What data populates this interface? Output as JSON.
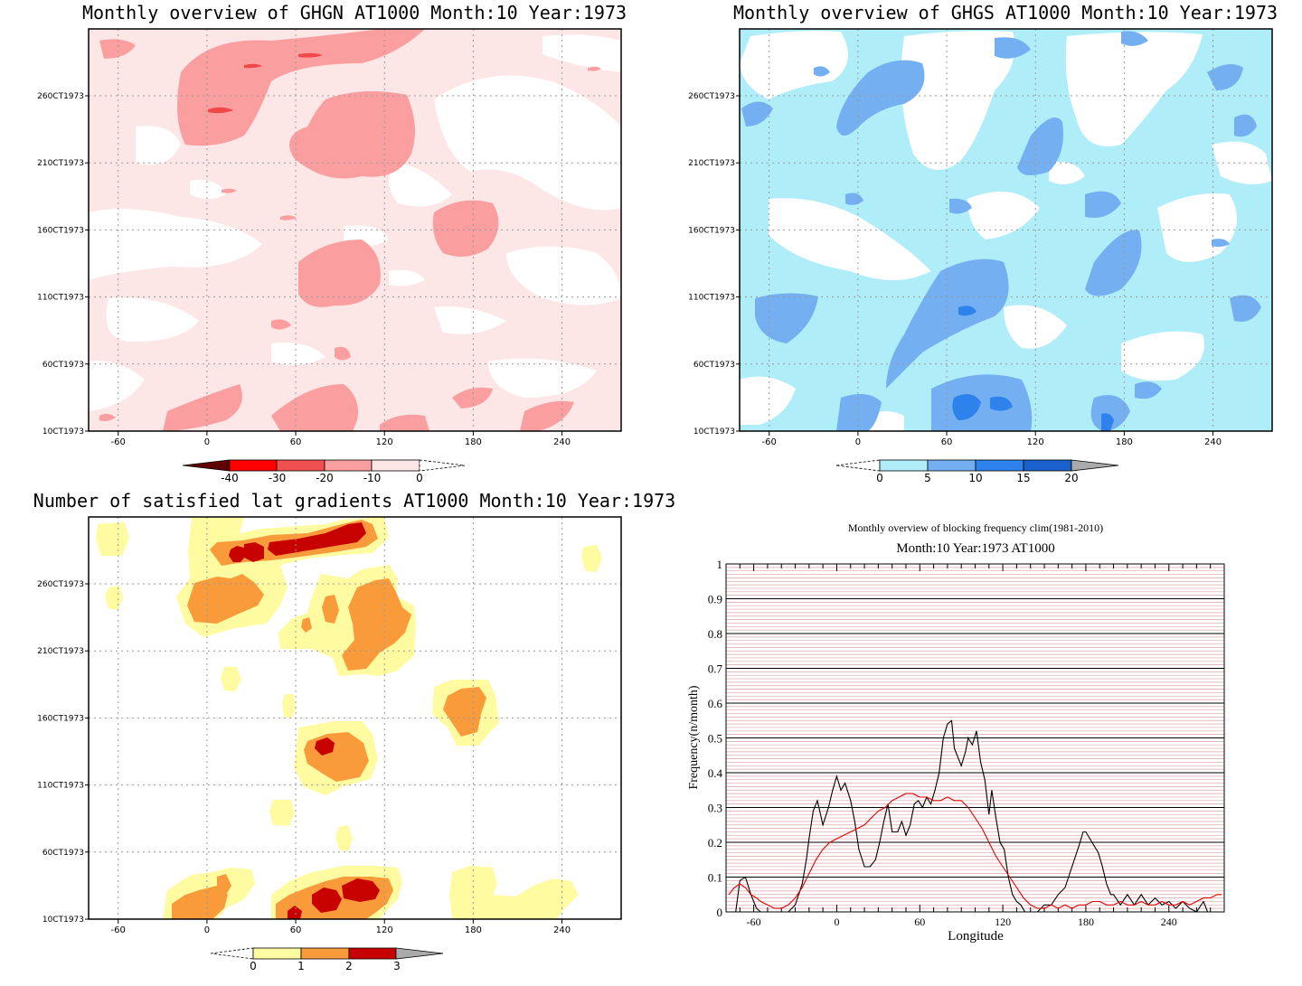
{
  "chart_data": [
    {
      "type": "heatmap",
      "title": "Monthly overview of GHGN AT1000 Month:10 Year:1973",
      "x_ticks": [
        -60,
        0,
        60,
        120,
        180,
        240
      ],
      "y_ticks": [
        "10CT1973",
        "60CT1973",
        "110CT1973",
        "160CT1973",
        "210CT1973",
        "260CT1973"
      ],
      "xlim": [
        -80,
        280
      ],
      "colorbar": {
        "ticks": [
          "-40",
          "-30",
          "-20",
          "-10",
          "0"
        ],
        "colors": [
          "#600000",
          "#ff0000",
          "#f05050",
          "#fa9ea0",
          "#fde6e6"
        ]
      },
      "grid": true
    },
    {
      "type": "heatmap",
      "title": "Monthly overview of GHGS AT1000 Month:10 Year:1973",
      "x_ticks": [
        -60,
        0,
        60,
        120,
        180,
        240
      ],
      "y_ticks": [
        "10CT1973",
        "60CT1973",
        "110CT1973",
        "160CT1973",
        "210CT1973",
        "260CT1973"
      ],
      "xlim": [
        -80,
        280
      ],
      "colorbar": {
        "ticks": [
          "0",
          "5",
          "10",
          "15",
          "20"
        ],
        "colors": [
          "#afedf8",
          "#74aff2",
          "#2d82ec",
          "#1a60cc",
          "#aaaaaa"
        ]
      },
      "grid": true
    },
    {
      "type": "heatmap",
      "title": "Number of satisfied lat gradients AT1000 Month:10 Year:1973",
      "x_ticks": [
        -60,
        0,
        60,
        120,
        180,
        240
      ],
      "y_ticks": [
        "10CT1973",
        "60CT1973",
        "110CT1973",
        "160CT1973",
        "210CT1973",
        "260CT1973"
      ],
      "xlim": [
        -80,
        280
      ],
      "colorbar": {
        "ticks": [
          "0",
          "1",
          "2",
          "3"
        ],
        "colors": [
          "#fffba0",
          "#f99b3b",
          "#c70000",
          "#aaaaaa"
        ]
      },
      "grid": true
    },
    {
      "type": "line",
      "title": "Monthly overview of blocking frequency clim(1981-2010)",
      "subtitle": "Month:10 Year:1973  AT1000",
      "xlabel": "Longitude",
      "ylabel": "Frequency(n/month)",
      "xlim": [
        -80,
        280
      ],
      "ylim": [
        0,
        1
      ],
      "x_ticks": [
        -60,
        0,
        60,
        120,
        180,
        240
      ],
      "y_ticks": [
        "0",
        "0.1",
        "0.2",
        "0.3",
        "0.4",
        "0.5",
        "0.6",
        "0.7",
        "0.8",
        "0.9",
        "1"
      ],
      "grid": true,
      "series": [
        {
          "color": "#000000",
          "x": [
            -73,
            -70,
            -66,
            -62,
            -58,
            -55,
            -50,
            -45,
            -40,
            -35,
            -30,
            -25,
            -22,
            -20,
            -17,
            -14,
            -10,
            -6,
            -3,
            0,
            3,
            6,
            10,
            13,
            16,
            20,
            24,
            28,
            31,
            34,
            37,
            40,
            44,
            47,
            50,
            53,
            56,
            59,
            62,
            65,
            68,
            71,
            74,
            77,
            80,
            83,
            85,
            88,
            90,
            93,
            95,
            98,
            101,
            104,
            107,
            110,
            112,
            115,
            118,
            121,
            124,
            127,
            130,
            133,
            136,
            140,
            145,
            150,
            155,
            160,
            165,
            170,
            175,
            178,
            180,
            183,
            186,
            189,
            192,
            195,
            198,
            200,
            205,
            210,
            215,
            220,
            225,
            230,
            235,
            240,
            245,
            250,
            255,
            260,
            265,
            268
          ],
          "values": [
            0,
            0.09,
            0.1,
            0.05,
            0.01,
            0,
            0,
            0,
            0,
            0,
            0.02,
            0.08,
            0.15,
            0.21,
            0.29,
            0.32,
            0.25,
            0.3,
            0.35,
            0.39,
            0.35,
            0.37,
            0.32,
            0.26,
            0.18,
            0.13,
            0.13,
            0.15,
            0.2,
            0.26,
            0.31,
            0.23,
            0.23,
            0.26,
            0.22,
            0.25,
            0.31,
            0.32,
            0.3,
            0.33,
            0.31,
            0.35,
            0.4,
            0.5,
            0.54,
            0.55,
            0.47,
            0.44,
            0.42,
            0.46,
            0.5,
            0.48,
            0.52,
            0.43,
            0.38,
            0.28,
            0.35,
            0.27,
            0.2,
            0.18,
            0.1,
            0.05,
            0.03,
            0.02,
            0,
            0,
            0,
            0.02,
            0.02,
            0.05,
            0.07,
            0.13,
            0.19,
            0.23,
            0.23,
            0.21,
            0.19,
            0.17,
            0.13,
            0.08,
            0.05,
            0.05,
            0.02,
            0.05,
            0.02,
            0.05,
            0.02,
            0.04,
            0.02,
            0.03,
            0.01,
            0.03,
            0.01,
            0,
            0.03,
            0
          ]
        },
        {
          "color": "#e00000",
          "x": [
            -78,
            -74,
            -70,
            -66,
            -62,
            -58,
            -55,
            -50,
            -45,
            -40,
            -35,
            -30,
            -25,
            -20,
            -15,
            -10,
            -5,
            0,
            5,
            10,
            15,
            20,
            25,
            30,
            35,
            40,
            45,
            50,
            55,
            60,
            65,
            70,
            75,
            80,
            85,
            90,
            95,
            100,
            105,
            110,
            115,
            120,
            125,
            130,
            135,
            140,
            145,
            150,
            155,
            160,
            165,
            170,
            175,
            180,
            185,
            190,
            195,
            200,
            205,
            210,
            215,
            220,
            225,
            230,
            235,
            240,
            245,
            250,
            255,
            260,
            265,
            270,
            275,
            278
          ],
          "values": [
            0.05,
            0.07,
            0.08,
            0.07,
            0.05,
            0.04,
            0.03,
            0.02,
            0.01,
            0.01,
            0.02,
            0.04,
            0.07,
            0.11,
            0.15,
            0.18,
            0.2,
            0.21,
            0.22,
            0.23,
            0.24,
            0.25,
            0.27,
            0.29,
            0.3,
            0.32,
            0.33,
            0.34,
            0.34,
            0.33,
            0.33,
            0.32,
            0.32,
            0.33,
            0.32,
            0.32,
            0.3,
            0.27,
            0.24,
            0.2,
            0.16,
            0.13,
            0.1,
            0.07,
            0.04,
            0.02,
            0.01,
            0.01,
            0.02,
            0.01,
            0.02,
            0.01,
            0.02,
            0.02,
            0.03,
            0.03,
            0.02,
            0.02,
            0.03,
            0.02,
            0.02,
            0.03,
            0.02,
            0.02,
            0.03,
            0.02,
            0.02,
            0.03,
            0.02,
            0.03,
            0.04,
            0.04,
            0.05,
            0.05
          ]
        }
      ]
    }
  ]
}
